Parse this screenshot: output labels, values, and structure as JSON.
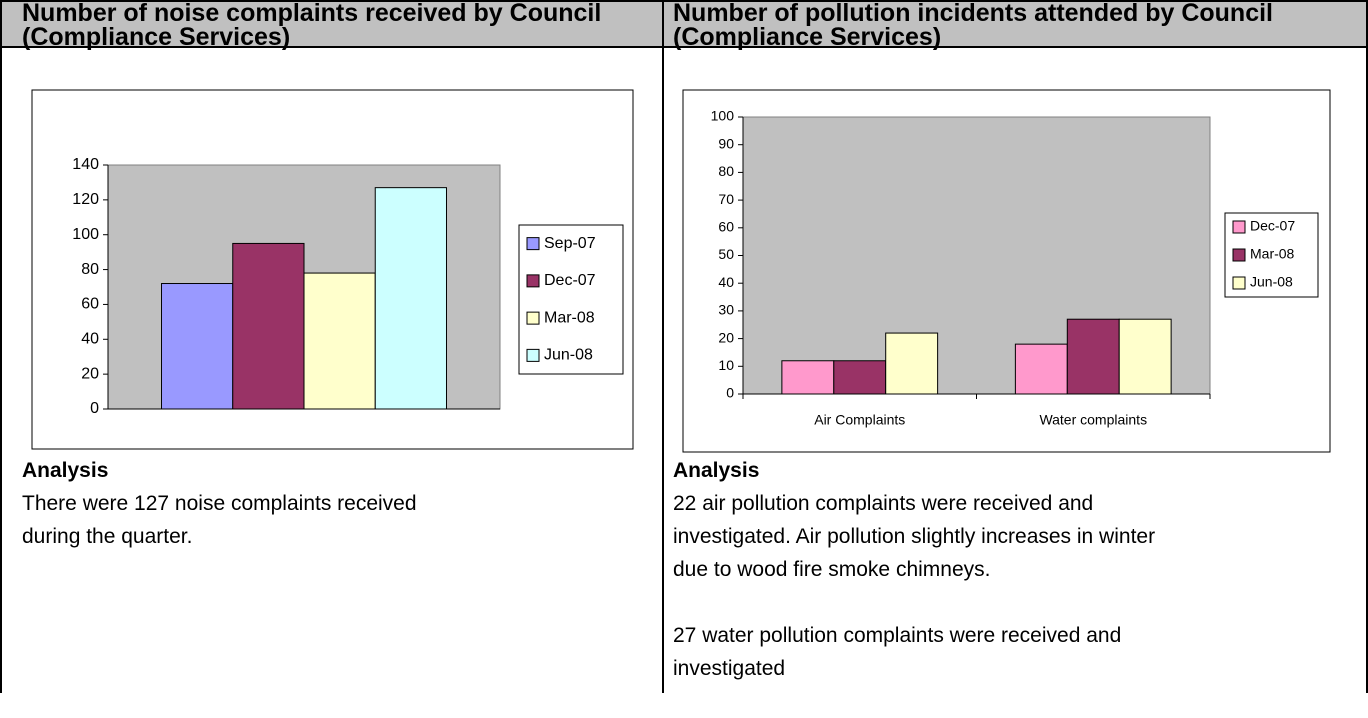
{
  "panels": [
    {
      "title": "Number of noise complaints received by Council (Compliance Services)",
      "analysis_heading": "Analysis",
      "analysis": [
        [
          "There were 127 noise complaints received",
          "during the quarter."
        ]
      ]
    },
    {
      "title": "Number of pollution incidents attended by Council (Compliance Services)",
      "analysis_heading": "Analysis",
      "analysis": [
        [
          "22 air pollution complaints were received and",
          "investigated. Air pollution slightly increases in winter",
          "due to wood fire smoke chimneys."
        ],
        [
          "27 water pollution complaints were received and",
          "investigated"
        ]
      ]
    }
  ],
  "chart_data": [
    {
      "type": "bar",
      "categories": [
        null
      ],
      "series": [
        {
          "name": "Sep-07",
          "color": "#9999ff",
          "values": [
            72
          ]
        },
        {
          "name": "Dec-07",
          "color": "#993366",
          "values": [
            95
          ]
        },
        {
          "name": "Mar-08",
          "color": "#ffffcc",
          "values": [
            78
          ]
        },
        {
          "name": "Jun-08",
          "color": "#ccffff",
          "values": [
            127
          ]
        }
      ],
      "ylim": [
        0,
        140
      ],
      "yticks": [
        0,
        20,
        40,
        60,
        80,
        100,
        120,
        140
      ],
      "legend": "right"
    },
    {
      "type": "bar",
      "categories": [
        "Air Complaints",
        "Water complaints"
      ],
      "series": [
        {
          "name": "Dec-07",
          "color": "#ff99cc",
          "values": [
            12,
            18
          ]
        },
        {
          "name": "Mar-08",
          "color": "#993366",
          "values": [
            12,
            27
          ]
        },
        {
          "name": "Jun-08",
          "color": "#ffffcc",
          "values": [
            22,
            27
          ]
        }
      ],
      "ylim": [
        0,
        100
      ],
      "yticks": [
        0,
        10,
        20,
        30,
        40,
        50,
        60,
        70,
        80,
        90,
        100
      ],
      "legend": "right"
    }
  ]
}
